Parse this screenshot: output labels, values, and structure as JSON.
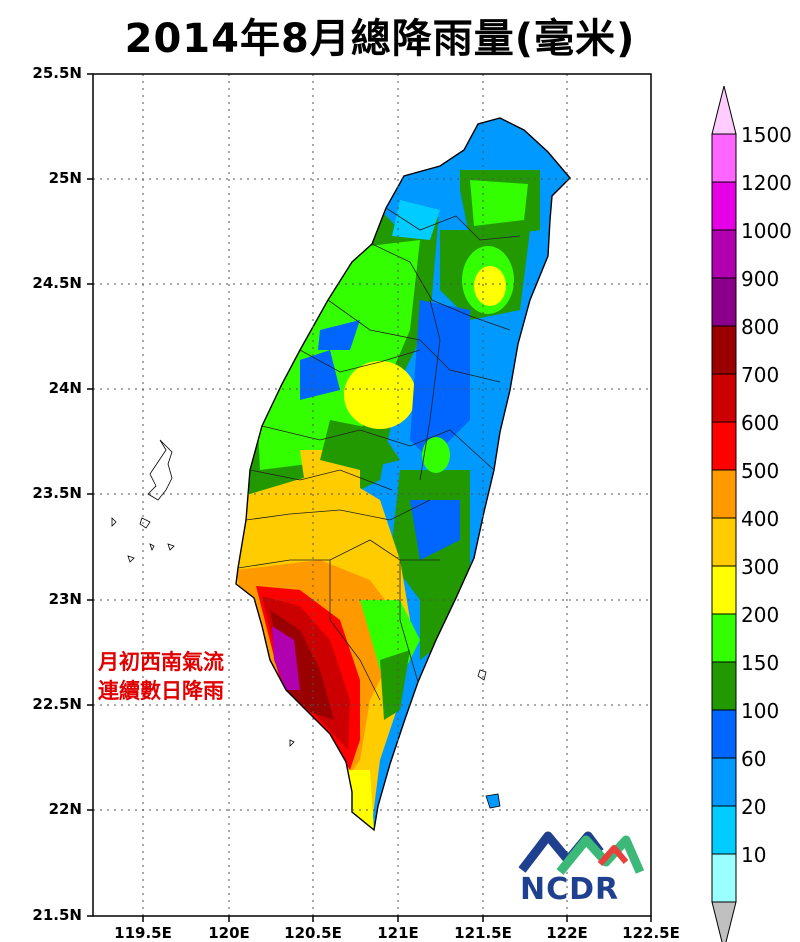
{
  "title": "2014年8月總降雨量(毫米)",
  "annotation": {
    "line1": "月初西南氣流",
    "line2": "連續數日降雨"
  },
  "logo": {
    "text": "NCDR",
    "colors": [
      "#1f3f8f",
      "#3cb878",
      "#e8413c"
    ]
  },
  "axes": {
    "lat_labels": [
      "25.5N",
      "25N",
      "24.5N",
      "24N",
      "23.5N",
      "23N",
      "22.5N",
      "22N",
      "21.5N"
    ],
    "lon_labels": [
      "119.5E",
      "120E",
      "120.5E",
      "121E",
      "121.5E",
      "122E",
      "122.5E"
    ],
    "lat_range": [
      21.5,
      25.5
    ],
    "lon_range": [
      119.2,
      122.5
    ]
  },
  "colorbar": {
    "labels": [
      "1500",
      "1200",
      "1000",
      "900",
      "800",
      "700",
      "600",
      "500",
      "400",
      "300",
      "200",
      "150",
      "100",
      "60",
      "20",
      "10"
    ],
    "colors": [
      "#ff66ff",
      "#e600e6",
      "#b000b0",
      "#8a008a",
      "#9b0000",
      "#cc0000",
      "#ff0000",
      "#ff9900",
      "#ffcc00",
      "#ffff00",
      "#33ff00",
      "#229900",
      "#0066ff",
      "#0099ff",
      "#00ccff",
      "#99ffff"
    ],
    "over_color": "#ffccff",
    "under_color": "#c0c0c0"
  }
}
